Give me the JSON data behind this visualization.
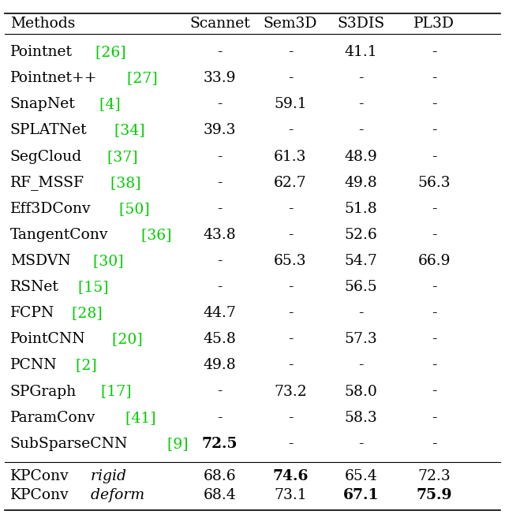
{
  "header": [
    "Methods",
    "Scannet",
    "Sem3D",
    "S3DIS",
    "PL3D"
  ],
  "rows": [
    {
      "method": "Pointnet",
      "cite": "[26]",
      "values": [
        "-",
        "-",
        "41.1",
        "-"
      ],
      "bold_vals": [
        false,
        false,
        false,
        false
      ]
    },
    {
      "method": "Pointnet++",
      "cite": "[27]",
      "values": [
        "33.9",
        "-",
        "-",
        "-"
      ],
      "bold_vals": [
        false,
        false,
        false,
        false
      ]
    },
    {
      "method": "SnapNet",
      "cite": "[4]",
      "values": [
        "-",
        "59.1",
        "-",
        "-"
      ],
      "bold_vals": [
        false,
        false,
        false,
        false
      ]
    },
    {
      "method": "SPLATNet",
      "cite": "[34]",
      "values": [
        "39.3",
        "-",
        "-",
        "-"
      ],
      "bold_vals": [
        false,
        false,
        false,
        false
      ]
    },
    {
      "method": "SegCloud",
      "cite": "[37]",
      "values": [
        "-",
        "61.3",
        "48.9",
        "-"
      ],
      "bold_vals": [
        false,
        false,
        false,
        false
      ]
    },
    {
      "method": "RF_MSSF",
      "cite": "[38]",
      "values": [
        "-",
        "62.7",
        "49.8",
        "56.3"
      ],
      "bold_vals": [
        false,
        false,
        false,
        false
      ]
    },
    {
      "method": "Eff3DConv",
      "cite": "[50]",
      "values": [
        "-",
        "-",
        "51.8",
        "-"
      ],
      "bold_vals": [
        false,
        false,
        false,
        false
      ]
    },
    {
      "method": "TangentConv",
      "cite": "[36]",
      "values": [
        "43.8",
        "-",
        "52.6",
        "-"
      ],
      "bold_vals": [
        false,
        false,
        false,
        false
      ]
    },
    {
      "method": "MSDVN",
      "cite": "[30]",
      "values": [
        "-",
        "65.3",
        "54.7",
        "66.9"
      ],
      "bold_vals": [
        false,
        false,
        false,
        false
      ]
    },
    {
      "method": "RSNet",
      "cite": "[15]",
      "values": [
        "-",
        "-",
        "56.5",
        "-"
      ],
      "bold_vals": [
        false,
        false,
        false,
        false
      ]
    },
    {
      "method": "FCPN",
      "cite": "[28]",
      "values": [
        "44.7",
        "-",
        "-",
        "-"
      ],
      "bold_vals": [
        false,
        false,
        false,
        false
      ]
    },
    {
      "method": "PointCNN",
      "cite": "[20]",
      "values": [
        "45.8",
        "-",
        "57.3",
        "-"
      ],
      "bold_vals": [
        false,
        false,
        false,
        false
      ]
    },
    {
      "method": "PCNN",
      "cite": "[2]",
      "values": [
        "49.8",
        "-",
        "-",
        "-"
      ],
      "bold_vals": [
        false,
        false,
        false,
        false
      ]
    },
    {
      "method": "SPGraph",
      "cite": "[17]",
      "values": [
        "-",
        "73.2",
        "58.0",
        "-"
      ],
      "bold_vals": [
        false,
        false,
        false,
        false
      ]
    },
    {
      "method": "ParamConv",
      "cite": "[41]",
      "values": [
        "-",
        "-",
        "58.3",
        "-"
      ],
      "bold_vals": [
        false,
        false,
        false,
        false
      ]
    },
    {
      "method": "SubSparseCNN",
      "cite": "[9]",
      "values": [
        "72.5",
        "-",
        "-",
        "-"
      ],
      "bold_vals": [
        true,
        false,
        false,
        false
      ]
    }
  ],
  "kpconv_rows": [
    {
      "method": "KPConv",
      "variant": "rigid",
      "values": [
        "68.6",
        "74.6",
        "65.4",
        "72.3"
      ],
      "bold_vals": [
        false,
        true,
        false,
        false
      ]
    },
    {
      "method": "KPConv",
      "variant": "deform",
      "values": [
        "68.4",
        "73.1",
        "67.1",
        "75.9"
      ],
      "bold_vals": [
        false,
        false,
        true,
        true
      ]
    }
  ],
  "fontsize": 13.5,
  "header_fontsize": 13.5,
  "figsize": [
    6.4,
    6.62
  ],
  "dpi": 100
}
